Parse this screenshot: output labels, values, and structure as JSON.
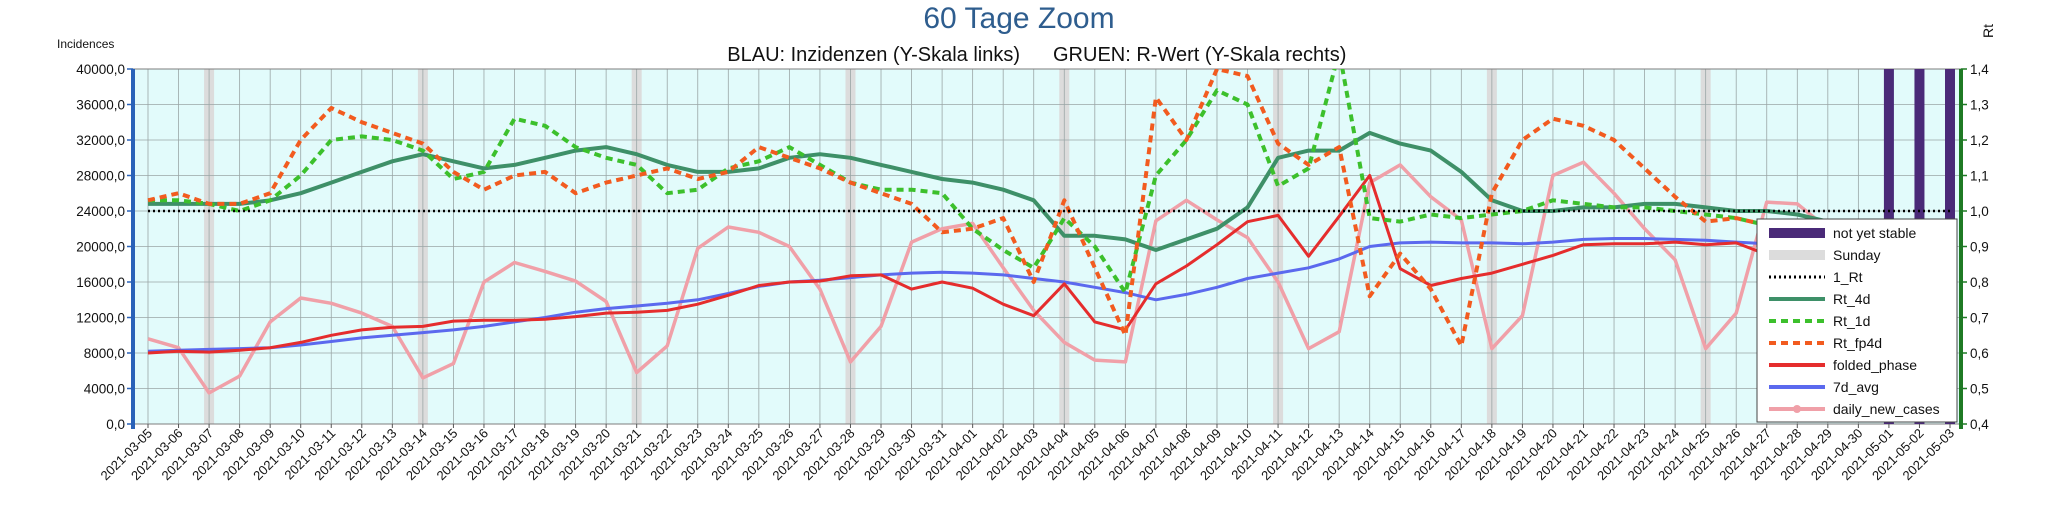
{
  "chart_data": {
    "type": "line",
    "title": "60 Tage Zoom",
    "subtitle_left": "BLAU: Inzidenzen (Y-Skala links)",
    "subtitle_right": "GRUEN: R-Wert (Y-Skala rechts)",
    "ylabel_left": "Incidences",
    "ylabel_right": "Rt",
    "ylim_left": [
      0,
      40000
    ],
    "yticks_left": [
      "0,0",
      "4000,0",
      "8000,0",
      "12000,0",
      "16000,0",
      "20000,0",
      "24000,0",
      "28000,0",
      "32000,0",
      "36000,0",
      "40000,0"
    ],
    "ylim_right": [
      0.4,
      1.4
    ],
    "yticks_right": [
      "0,4",
      "0,5",
      "0,6",
      "0,7",
      "0,8",
      "0,9",
      "1,0",
      "1,1",
      "1,2",
      "1,3",
      "1,4"
    ],
    "grid": true,
    "legend_position": "right-bottom",
    "x": [
      "2021-03-05",
      "2021-03-06",
      "2021-03-07",
      "2021-03-08",
      "2021-03-09",
      "2021-03-10",
      "2021-03-11",
      "2021-03-12",
      "2021-03-13",
      "2021-03-14",
      "2021-03-15",
      "2021-03-16",
      "2021-03-17",
      "2021-03-18",
      "2021-03-19",
      "2021-03-20",
      "2021-03-21",
      "2021-03-22",
      "2021-03-23",
      "2021-03-24",
      "2021-03-25",
      "2021-03-26",
      "2021-03-27",
      "2021-03-28",
      "2021-03-29",
      "2021-03-30",
      "2021-03-31",
      "2021-04-01",
      "2021-04-02",
      "2021-04-03",
      "2021-04-04",
      "2021-04-05",
      "2021-04-06",
      "2021-04-07",
      "2021-04-08",
      "2021-04-09",
      "2021-04-10",
      "2021-04-11",
      "2021-04-12",
      "2021-04-13",
      "2021-04-14",
      "2021-04-15",
      "2021-04-16",
      "2021-04-17",
      "2021-04-18",
      "2021-04-19",
      "2021-04-20",
      "2021-04-21",
      "2021-04-22",
      "2021-04-23",
      "2021-04-24",
      "2021-04-25",
      "2021-04-26",
      "2021-04-27",
      "2021-04-28",
      "2021-04-29",
      "2021-04-30",
      "2021-05-01",
      "2021-05-02",
      "2021-05-03"
    ],
    "sunday_dates": [
      "2021-03-07",
      "2021-03-14",
      "2021-03-21",
      "2021-03-28",
      "2021-04-04",
      "2021-04-11",
      "2021-04-18",
      "2021-04-25"
    ],
    "not_yet_stable_dates": [
      "2021-05-01",
      "2021-05-02",
      "2021-05-03"
    ],
    "series": [
      {
        "name": "not yet stable",
        "color": "#4a2a78",
        "style": "band"
      },
      {
        "name": "Sunday",
        "color": "#dcdcdc",
        "style": "band"
      },
      {
        "name": "1_Rt",
        "axis": "right",
        "color": "#000000",
        "style": "dotted",
        "values": [
          1.0,
          1.0,
          1.0,
          1.0,
          1.0,
          1.0,
          1.0,
          1.0,
          1.0,
          1.0,
          1.0,
          1.0,
          1.0,
          1.0,
          1.0,
          1.0,
          1.0,
          1.0,
          1.0,
          1.0,
          1.0,
          1.0,
          1.0,
          1.0,
          1.0,
          1.0,
          1.0,
          1.0,
          1.0,
          1.0,
          1.0,
          1.0,
          1.0,
          1.0,
          1.0,
          1.0,
          1.0,
          1.0,
          1.0,
          1.0,
          1.0,
          1.0,
          1.0,
          1.0,
          1.0,
          1.0,
          1.0,
          1.0,
          1.0,
          1.0,
          1.0,
          1.0,
          1.0,
          1.0,
          1.0,
          1.0,
          1.0,
          1.0,
          1.0,
          1.0
        ]
      },
      {
        "name": "Rt_4d",
        "axis": "right",
        "color": "#3e9068",
        "style": "solid",
        "values": [
          1.02,
          1.02,
          1.02,
          1.02,
          1.03,
          1.05,
          1.08,
          1.11,
          1.14,
          1.16,
          1.14,
          1.12,
          1.13,
          1.15,
          1.17,
          1.18,
          1.16,
          1.13,
          1.11,
          1.11,
          1.12,
          1.15,
          1.16,
          1.15,
          1.13,
          1.11,
          1.09,
          1.08,
          1.06,
          1.03,
          0.93,
          0.93,
          0.92,
          0.89,
          0.92,
          0.95,
          1.01,
          1.15,
          1.17,
          1.17,
          1.22,
          1.19,
          1.17,
          1.11,
          1.03,
          1.0,
          1.0,
          1.01,
          1.01,
          1.02,
          1.02,
          1.01,
          1.0,
          1.0,
          0.99,
          0.97,
          0.95,
          0.93,
          0.91,
          0.91
        ]
      },
      {
        "name": "Rt_1d",
        "axis": "right",
        "color": "#3cc02c",
        "style": "dashed",
        "values": [
          1.03,
          1.03,
          1.02,
          1.0,
          1.03,
          1.1,
          1.2,
          1.21,
          1.2,
          1.17,
          1.09,
          1.11,
          1.26,
          1.24,
          1.18,
          1.15,
          1.13,
          1.05,
          1.06,
          1.12,
          1.14,
          1.18,
          1.13,
          1.08,
          1.06,
          1.06,
          1.05,
          0.95,
          0.89,
          0.84,
          0.98,
          0.9,
          0.77,
          1.1,
          1.2,
          1.34,
          1.3,
          1.07,
          1.12,
          1.45,
          0.98,
          0.97,
          0.99,
          0.98,
          0.99,
          1.0,
          1.03,
          1.02,
          1.01,
          1.01,
          1.0,
          0.99,
          0.98,
          0.96,
          0.92,
          0.91,
          0.89,
          0.9,
          0.92,
          0.81
        ]
      },
      {
        "name": "Rt_fp4d",
        "axis": "right",
        "color": "#f25b1f",
        "style": "dashed",
        "values": [
          1.03,
          1.05,
          1.02,
          1.02,
          1.05,
          1.2,
          1.29,
          1.25,
          1.22,
          1.19,
          1.11,
          1.06,
          1.1,
          1.11,
          1.05,
          1.08,
          1.1,
          1.12,
          1.09,
          1.11,
          1.18,
          1.15,
          1.12,
          1.08,
          1.05,
          1.02,
          0.94,
          0.95,
          0.98,
          0.8,
          1.03,
          0.84,
          0.65,
          1.32,
          1.2,
          1.4,
          1.38,
          1.19,
          1.13,
          1.18,
          0.76,
          0.88,
          0.78,
          0.62,
          1.05,
          1.2,
          1.26,
          1.24,
          1.2,
          1.12,
          1.04,
          0.97,
          0.98,
          0.96,
          0.93,
          0.91,
          0.9,
          0.91,
          0.91,
          0.7
        ]
      },
      {
        "name": "folded_phase",
        "axis": "left",
        "color": "#e52d2d",
        "style": "solid",
        "values": [
          8000,
          8200,
          8100,
          8300,
          8600,
          9200,
          10000,
          10600,
          10900,
          11000,
          11600,
          11700,
          11700,
          11800,
          12100,
          12500,
          12600,
          12800,
          13500,
          14500,
          15600,
          16000,
          16100,
          16700,
          16800,
          15200,
          16000,
          15300,
          13500,
          12200,
          15800,
          11500,
          10600,
          15800,
          17800,
          20200,
          22800,
          23500,
          18900,
          23400,
          28000,
          17500,
          15600,
          16400,
          17000,
          18000,
          19000,
          20200,
          20300,
          20300,
          20500,
          20200,
          20400,
          19100,
          18300,
          17900,
          17600,
          17300,
          16900,
          16000
        ]
      },
      {
        "name": "7d_avg",
        "axis": "left",
        "color": "#5b69ee",
        "style": "solid",
        "values": [
          8200,
          8300,
          8400,
          8500,
          8600,
          8900,
          9300,
          9700,
          10000,
          10300,
          10600,
          11000,
          11500,
          12000,
          12600,
          13000,
          13300,
          13600,
          14000,
          14700,
          15500,
          16000,
          16200,
          16500,
          16800,
          17000,
          17100,
          17000,
          16800,
          16400,
          16000,
          15400,
          14800,
          14000,
          14600,
          15400,
          16400,
          17000,
          17600,
          18600,
          20000,
          20400,
          20500,
          20400,
          20400,
          20300,
          20500,
          20800,
          20900,
          20900,
          20800,
          20700,
          20500,
          20300,
          19900,
          19300,
          18900,
          18400,
          17800,
          17100
        ]
      },
      {
        "name": "daily_new_cases",
        "axis": "left",
        "color": "#f0a0a8",
        "style": "marker-line",
        "values": [
          9600,
          8600,
          3500,
          5400,
          11500,
          14200,
          13600,
          12500,
          11000,
          5200,
          6800,
          16000,
          18200,
          17200,
          16100,
          13800,
          5800,
          8800,
          19800,
          22200,
          21600,
          20000,
          15200,
          7000,
          11000,
          20500,
          22000,
          22600,
          17600,
          12800,
          9200,
          7200,
          7000,
          22900,
          25200,
          23000,
          21000,
          16000,
          8500,
          10400,
          27200,
          29200,
          25600,
          23000,
          8500,
          12200,
          28000,
          29500,
          26000,
          22000,
          18500,
          8500,
          12500,
          25000,
          24800,
          22000,
          19300,
          17500,
          6800,
          5800
        ]
      }
    ]
  }
}
